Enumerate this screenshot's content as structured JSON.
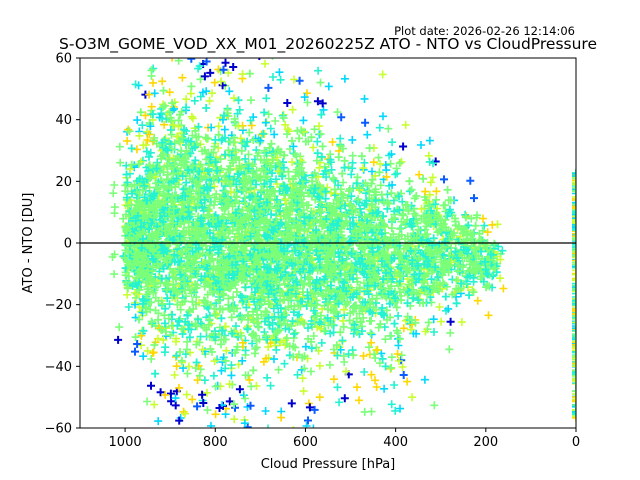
{
  "chart_data": {
    "type": "scatter",
    "title": "S-O3M_GOME_VOD_XX_M01_20260225Z ATO - NTO vs CloudPressure",
    "plot_date": "Plot date: 2026-02-26 12:14:06",
    "xlabel": "Cloud Pressure [hPa]",
    "ylabel": "ATO - NTO [DU]",
    "xlim": [
      1100,
      0
    ],
    "ylim": [
      -60,
      60
    ],
    "xticks": [
      1000,
      800,
      600,
      400,
      200,
      0
    ],
    "yticks": [
      -60,
      -40,
      -20,
      0,
      20,
      40,
      60
    ],
    "reference_line_y": 0,
    "marker": "+",
    "colormap": [
      "#0000cc",
      "#0a5cff",
      "#00d8ff",
      "#25f2d0",
      "#7cff78",
      "#c8ff30",
      "#ffd800"
    ],
    "core_color": "#7cff78",
    "mid_color": "#25f2d0",
    "main_cloud": {
      "x_range": [
        150,
        1010
      ],
      "center_y_by_pressure": [
        [
          1000,
          2
        ],
        [
          900,
          5
        ],
        [
          800,
          2
        ],
        [
          600,
          -2
        ],
        [
          400,
          -5
        ],
        [
          250,
          -3
        ],
        [
          180,
          -6
        ]
      ],
      "spread_by_pressure": [
        [
          1000,
          28
        ],
        [
          900,
          60
        ],
        [
          800,
          56
        ],
        [
          600,
          50
        ],
        [
          400,
          38
        ],
        [
          250,
          20
        ],
        [
          180,
          12
        ]
      ]
    },
    "clear_sky_column": {
      "x": 0,
      "y_range": [
        -57,
        23
      ]
    },
    "points_rendered": 5200
  }
}
